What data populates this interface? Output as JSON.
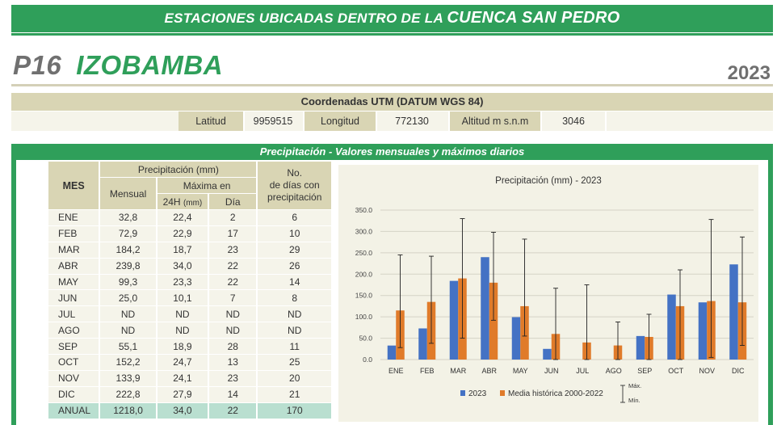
{
  "banner": {
    "prefix": "ESTACIONES UBICADAS DENTRO DE LA ",
    "emphasis": "CUENCA SAN PEDRO"
  },
  "station": {
    "code": "P16",
    "name": "IZOBAMBA",
    "year": "2023"
  },
  "coordinates": {
    "title": "Coordenadas UTM (DATUM WGS 84)",
    "lat_label": "Latitud",
    "lat_value": "9959515",
    "lon_label": "Longitud",
    "lon_value": "772130",
    "alt_label": "Altitud m s.n.m",
    "alt_value": "3046"
  },
  "section_title": "Precipitación - Valores mensuales y máximos diarios",
  "table": {
    "h_mes": "MES",
    "h_precip": "Precipitación (mm)",
    "h_mensual": "Mensual",
    "h_maxima": "Máxima en",
    "h_24h": "24H",
    "h_24h_unit": "(mm)",
    "h_dia": "Día",
    "h_no": "No.",
    "h_dias_con": "de días con",
    "h_precipitacion": "precipitación",
    "rows": [
      {
        "mes": "ENE",
        "mensual": "32,8",
        "max24": "22,4",
        "dia": "2",
        "dias": "6"
      },
      {
        "mes": "FEB",
        "mensual": "72,9",
        "max24": "22,9",
        "dia": "17",
        "dias": "10"
      },
      {
        "mes": "MAR",
        "mensual": "184,2",
        "max24": "18,7",
        "dia": "23",
        "dias": "29"
      },
      {
        "mes": "ABR",
        "mensual": "239,8",
        "max24": "34,0",
        "dia": "22",
        "dias": "26"
      },
      {
        "mes": "MAY",
        "mensual": "99,3",
        "max24": "23,3",
        "dia": "22",
        "dias": "14"
      },
      {
        "mes": "JUN",
        "mensual": "25,0",
        "max24": "10,1",
        "dia": "7",
        "dias": "8"
      },
      {
        "mes": "JUL",
        "mensual": "ND",
        "max24": "ND",
        "dia": "ND",
        "dias": "ND"
      },
      {
        "mes": "AGO",
        "mensual": "ND",
        "max24": "ND",
        "dia": "ND",
        "dias": "ND"
      },
      {
        "mes": "SEP",
        "mensual": "55,1",
        "max24": "18,9",
        "dia": "28",
        "dias": "11"
      },
      {
        "mes": "OCT",
        "mensual": "152,2",
        "max24": "24,7",
        "dia": "13",
        "dias": "25"
      },
      {
        "mes": "NOV",
        "mensual": "133,9",
        "max24": "24,1",
        "dia": "23",
        "dias": "20"
      },
      {
        "mes": "DIC",
        "mensual": "222,8",
        "max24": "27,9",
        "dia": "14",
        "dias": "21"
      }
    ],
    "total": {
      "mes": "ANUAL",
      "mensual": "1218,0",
      "max24": "34,0",
      "dia": "22",
      "dias": "170"
    }
  },
  "chart_data": {
    "type": "bar",
    "title": "Precipitación (mm) -",
    "title_year": "2023",
    "categories": [
      "ENE",
      "FEB",
      "MAR",
      "ABR",
      "MAY",
      "JUN",
      "JUL",
      "AGO",
      "SEP",
      "OCT",
      "NOV",
      "DIC"
    ],
    "ylim": [
      0,
      350
    ],
    "yticks": [
      "0.0",
      "50.0",
      "100.0",
      "150.0",
      "200.0",
      "250.0",
      "300.0",
      "350.0"
    ],
    "grid": true,
    "series": [
      {
        "name": "2023",
        "color": "#4472c4",
        "values": [
          32.8,
          72.9,
          184.2,
          239.8,
          99.3,
          25.0,
          null,
          null,
          55.1,
          152.2,
          133.9,
          222.8
        ]
      },
      {
        "name": "Media histórica 2000-2022",
        "color": "#e07b2a",
        "values": [
          115,
          135,
          190,
          180,
          125,
          60,
          40,
          33,
          53,
          125,
          137,
          134
        ],
        "err_max": [
          245,
          242,
          330,
          298,
          282,
          167,
          175,
          88,
          106,
          210,
          328,
          287
        ],
        "err_min": [
          28,
          38,
          50,
          92,
          55,
          0,
          0,
          0,
          0,
          0,
          5,
          33
        ]
      }
    ],
    "legend_position": "bottom",
    "legend_errbar": {
      "max": "Máx.",
      "min": "Mín."
    }
  }
}
